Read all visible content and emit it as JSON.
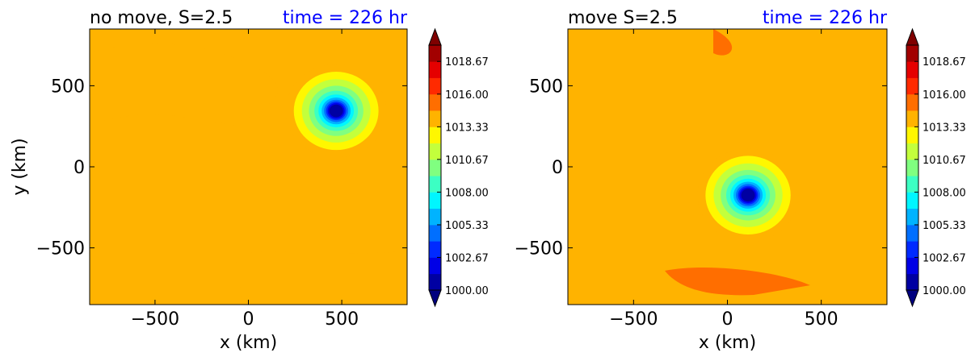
{
  "chart_data": [
    {
      "type": "heatmap",
      "title": "no move, S=2.5",
      "time_label": "time = 226 hr",
      "xlabel": "x (km)",
      "ylabel": "y (km)",
      "xlim": [
        -850,
        850
      ],
      "ylim": [
        -850,
        850
      ],
      "xticks": [
        -500,
        0,
        500
      ],
      "yticks": [
        -500,
        0,
        500
      ],
      "xtick_labels": [
        "−500",
        "0",
        "500"
      ],
      "ytick_labels": [
        "−500",
        "0",
        "500"
      ],
      "low_center": [
        470,
        345
      ],
      "background_value": 1014.3,
      "colorbar": {
        "min": 1000.0,
        "max": 1020.0,
        "ticks": [
          1000.0,
          1002.67,
          1005.33,
          1008.0,
          1010.67,
          1013.33,
          1016.0,
          1018.67
        ],
        "tick_labels": [
          "1000.00",
          "1002.67",
          "1005.33",
          "1008.00",
          "1010.67",
          "1013.33",
          "1016.00",
          "1018.67"
        ],
        "extend": "both"
      }
    },
    {
      "type": "heatmap",
      "title": "move S=2.5",
      "time_label": "time = 226 hr",
      "xlabel": "x (km)",
      "ylabel": "",
      "xlim": [
        -850,
        850
      ],
      "ylim": [
        -850,
        850
      ],
      "xticks": [
        -500,
        0,
        500
      ],
      "yticks": [
        -500,
        0,
        500
      ],
      "xtick_labels": [
        "−500",
        "0",
        "500"
      ],
      "ytick_labels": [
        "−500",
        "0",
        "500"
      ],
      "low_center": [
        110,
        -175
      ],
      "background_value": 1014.3,
      "colorbar": {
        "min": 1000.0,
        "max": 1020.0,
        "ticks": [
          1000.0,
          1002.67,
          1005.33,
          1008.0,
          1010.67,
          1013.33,
          1016.0,
          1018.67
        ],
        "tick_labels": [
          "1000.00",
          "1002.67",
          "1005.33",
          "1008.00",
          "1010.67",
          "1013.33",
          "1016.00",
          "1018.67"
        ],
        "extend": "both"
      }
    }
  ],
  "colors": {
    "time_label": "#0000ff",
    "jet_palette": [
      "#00007f",
      "#0000ff",
      "#007fff",
      "#00e5ff",
      "#4bffae",
      "#aeff4b",
      "#ffe500",
      "#ffb000",
      "#ff6a00",
      "#ff1700",
      "#b00000",
      "#7f0000"
    ]
  }
}
